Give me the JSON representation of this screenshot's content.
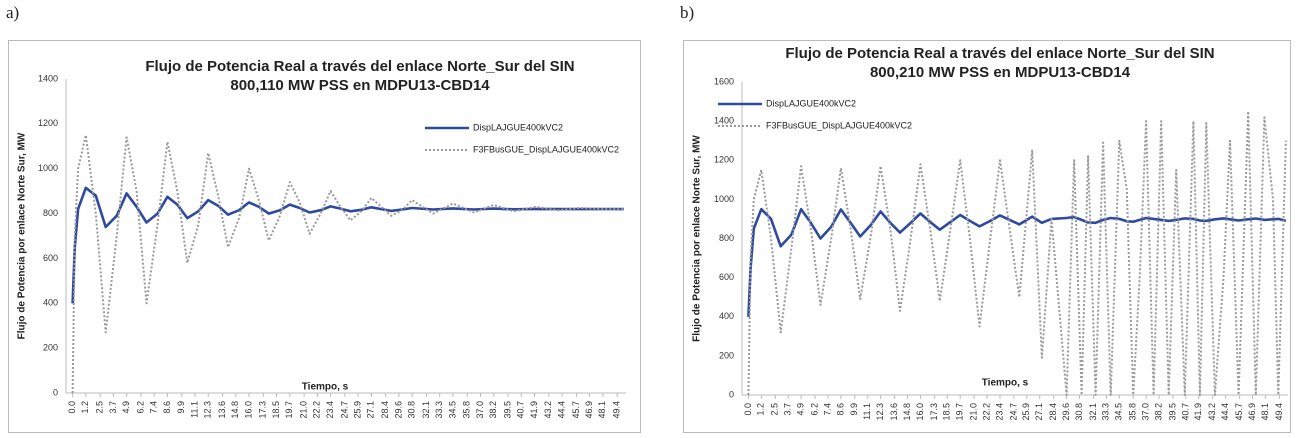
{
  "labels": [
    "a)",
    "b)"
  ],
  "chart_data": [
    {
      "type": "line",
      "title": "Flujo de Potencia Real a través del enlace Norte_Sur del SIN",
      "subtitle": "800,110  MW   PSS en MDPU13-CBD14",
      "xlabel": "Tiempo, s",
      "ylabel": "Flujo de Potencia por enlace Norte Sur, MW",
      "legend": "upper right",
      "grid": false,
      "xlim": [
        -0.6,
        50.2
      ],
      "ylim": [
        0,
        1400
      ],
      "yticks": [
        0,
        200,
        400,
        600,
        800,
        1000,
        1200,
        1400
      ],
      "xticks": [
        {
          "value": 0,
          "label": "0.0"
        },
        1.2,
        2.5,
        3.7,
        4.9,
        6.2,
        7.4,
        8.6,
        9.9,
        11.1,
        12.3,
        13.6,
        14.8,
        {
          "value": 16,
          "label": "16.0"
        },
        17.3,
        18.5,
        19.7,
        {
          "value": 21,
          "label": "21.0"
        },
        22.2,
        23.4,
        24.7,
        25.9,
        27.1,
        28.4,
        29.6,
        30.8,
        32.1,
        33.3,
        34.5,
        35.8,
        {
          "value": 37,
          "label": "37.0"
        },
        38.2,
        39.5,
        40.7,
        41.9,
        43.2,
        44.4,
        45.7,
        46.9,
        48.1,
        49.4
      ],
      "x": [
        0,
        0.2,
        0.5,
        1.2,
        2.1,
        3.0,
        4.0,
        4.9,
        5.8,
        6.7,
        7.7,
        8.6,
        9.5,
        10.4,
        11.4,
        12.3,
        13.2,
        14.1,
        15.1,
        16.0,
        16.9,
        17.8,
        18.8,
        19.7,
        20.6,
        21.5,
        22.5,
        23.4,
        24.3,
        25.2,
        26.2,
        27.1,
        28.0,
        28.9,
        29.9,
        30.8,
        32.7,
        34.5,
        36.4,
        38.2,
        40.0,
        42.0,
        44.0,
        46.0,
        48.0,
        50.0
      ],
      "series": [
        {
          "name": "DispLAJGUE400kVC2",
          "color": "#2e4a9e",
          "line_style": "solid",
          "values": [
            400,
            650,
            820,
            915,
            880,
            740,
            790,
            890,
            830,
            760,
            800,
            875,
            840,
            780,
            810,
            860,
            835,
            795,
            815,
            850,
            830,
            800,
            815,
            840,
            825,
            805,
            815,
            832,
            822,
            810,
            817,
            828,
            820,
            812,
            818,
            825,
            818,
            823,
            818,
            822,
            819,
            821,
            820,
            820,
            820,
            820
          ]
        },
        {
          "name": "F3FBusGUE_DispLAJGUE400kVC2",
          "color": "#9a9a9a",
          "line_style": "dotted",
          "values": [
            0,
            700,
            1000,
            1150,
            800,
            270,
            700,
            1140,
            900,
            400,
            750,
            1120,
            900,
            580,
            750,
            1070,
            880,
            650,
            780,
            1000,
            860,
            680,
            790,
            940,
            850,
            710,
            800,
            900,
            830,
            770,
            810,
            870,
            830,
            790,
            815,
            860,
            800,
            845,
            805,
            838,
            810,
            830,
            815,
            825,
            820,
            820
          ]
        }
      ]
    },
    {
      "type": "line",
      "title": "Flujo de Potencia Real a través del enlace Norte_Sur del SIN",
      "subtitle": "800,210 MW     PSS en MDPU13-CBD14",
      "xlabel": "Tiempo, s",
      "ylabel": "Flujo de Potencia por enlace Norte Sur, MW",
      "legend": "upper left",
      "grid": false,
      "xlim": [
        -0.6,
        50.2
      ],
      "ylim": [
        0,
        1600
      ],
      "yticks": [
        0,
        200,
        400,
        600,
        800,
        1000,
        1200,
        1400,
        1600
      ],
      "xticks": [
        {
          "value": 0,
          "label": "0.0"
        },
        1.2,
        2.5,
        3.7,
        4.9,
        6.2,
        7.4,
        8.6,
        9.9,
        11.1,
        12.3,
        13.6,
        14.8,
        {
          "value": 16,
          "label": "16.0"
        },
        17.3,
        18.5,
        19.7,
        {
          "value": 21,
          "label": "21.0"
        },
        22.2,
        23.4,
        24.7,
        25.9,
        27.1,
        28.4,
        29.6,
        30.8,
        32.1,
        33.3,
        34.5,
        35.8,
        {
          "value": 37,
          "label": "37.0"
        },
        38.2,
        39.5,
        40.7,
        41.9,
        43.2,
        44.4,
        45.7,
        46.9,
        48.1,
        49.4
      ],
      "x": [
        0,
        0.2,
        0.5,
        1.2,
        2.1,
        3.0,
        4.0,
        4.9,
        5.8,
        6.7,
        7.7,
        8.6,
        9.5,
        10.4,
        11.4,
        12.3,
        13.2,
        14.1,
        15.1,
        16.0,
        16.9,
        17.8,
        18.8,
        19.7,
        20.6,
        21.5,
        22.5,
        23.4,
        24.3,
        25.2,
        26.4,
        27.3,
        28.2,
        29.6,
        30.3,
        31.0,
        31.6,
        32.3,
        33.0,
        33.7,
        34.5,
        35.2,
        35.8,
        36.4,
        37.0,
        37.7,
        38.4,
        39.1,
        39.8,
        40.6,
        41.4,
        42.0,
        42.6,
        43.4,
        44.2,
        44.8,
        45.6,
        46.5,
        47.2,
        48.0,
        48.8,
        49.3,
        50.0
      ],
      "series": [
        {
          "name": "DispLAJGUE400kVC2",
          "color": "#2e4a9e",
          "line_style": "solid",
          "values": [
            400,
            650,
            850,
            950,
            900,
            760,
            820,
            950,
            880,
            800,
            860,
            948,
            880,
            810,
            870,
            938,
            880,
            830,
            880,
            928,
            885,
            845,
            885,
            920,
            890,
            862,
            890,
            918,
            895,
            872,
            912,
            880,
            900,
            905,
            910,
            895,
            882,
            880,
            895,
            905,
            900,
            888,
            886,
            895,
            905,
            900,
            895,
            890,
            895,
            903,
            900,
            892,
            890,
            898,
            903,
            898,
            892,
            898,
            902,
            895,
            898,
            900,
            890
          ]
        },
        {
          "name": "F3FBusGUE_DispLAJGUE400kVC2",
          "color": "#9a9a9a",
          "line_style": "dotted",
          "values": [
            0,
            700,
            1000,
            1150,
            800,
            320,
            750,
            1170,
            850,
            460,
            800,
            1160,
            850,
            490,
            820,
            1170,
            850,
            430,
            800,
            1180,
            850,
            480,
            850,
            1200,
            800,
            350,
            800,
            1200,
            850,
            500,
            1250,
            190,
            900,
            0,
            1200,
            0,
            1220,
            0,
            1290,
            0,
            1300,
            1050,
            0,
            600,
            1400,
            0,
            1400,
            0,
            1150,
            0,
            1400,
            0,
            1390,
            0,
            600,
            1300,
            0,
            1450,
            0,
            1420,
            1000,
            0,
            1300
          ]
        }
      ]
    }
  ]
}
